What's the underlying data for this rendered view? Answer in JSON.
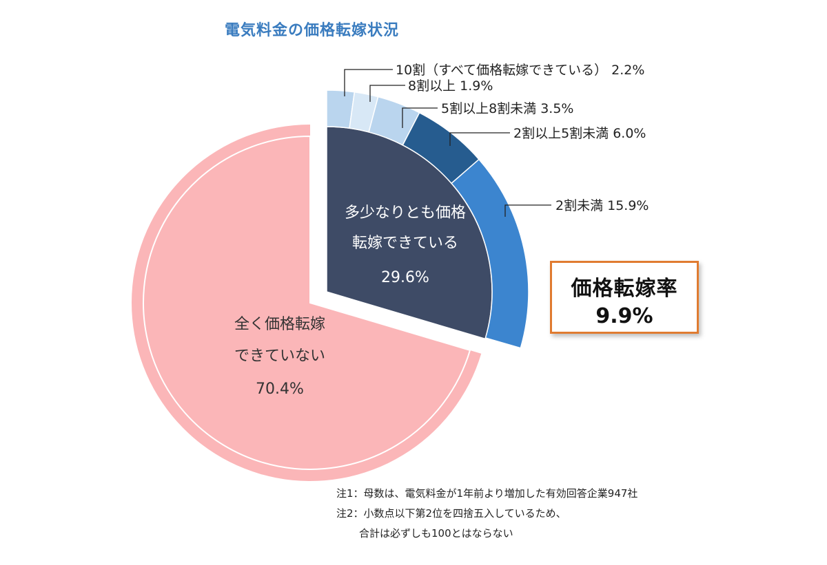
{
  "chart_data": {
    "type": "pie",
    "title": "電気料金の価格転嫁状況",
    "slices": [
      {
        "label": "全く価格転嫁できていない",
        "value": 70.4,
        "color": "#fbb6b8"
      },
      {
        "label": "多少なりとも価格転嫁できている",
        "value": 29.6,
        "color": "#3e4b66"
      }
    ],
    "breakdown": [
      {
        "label": "10割（すべて価格転嫁できている）",
        "value": 2.2,
        "color": "#bad5ee"
      },
      {
        "label": "8割以上",
        "value": 1.9,
        "color": "#d8e8f6"
      },
      {
        "label": "5割以上8割未満",
        "value": 3.5,
        "color": "#bad5ee"
      },
      {
        "label": "2割以上5割未満",
        "value": 6.0,
        "color": "#265c8f"
      },
      {
        "label": "2割未満",
        "value": 15.9,
        "color": "#3c85cf"
      }
    ]
  },
  "labels": {
    "bd0": "10割（すべて価格転嫁できている） 2.2%",
    "bd1": "8割以上 1.9%",
    "bd2": "5割以上8割未満 3.5%",
    "bd3": "2割以上5割未満 6.0%",
    "bd4": "2割未満 15.9%",
    "dark_line1": "多少なりとも価格",
    "dark_line2": "転嫁できている",
    "dark_value": "29.6%",
    "pink_line1": "全く価格転嫁",
    "pink_line2": "できていない",
    "pink_value": "70.4%"
  },
  "rate_box": {
    "label": "価格転嫁率",
    "value": "9.9%"
  },
  "notes": [
    "注1：母数は、電気料金が1年前より増加した有効回答企業947社",
    "注2：小数点以下第2位を四捨五入しているため、",
    "合計は必ずしも100とはならない"
  ]
}
